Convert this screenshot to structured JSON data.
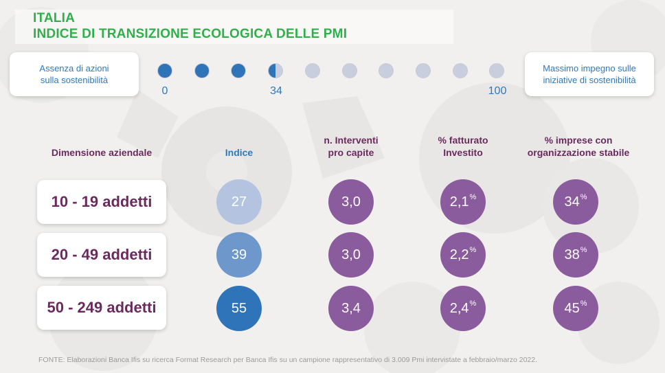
{
  "title": {
    "line1": "ITALIA",
    "line2": "INDICE DI TRANSIZIONE ECOLOGICA DELLE PMI"
  },
  "scale": {
    "left_label": "Assenza di azioni\nsulla sostenibilità",
    "right_label": "Massimo impegno sulle\niniziative di sostenibilità",
    "value": 34,
    "min": 0,
    "max": 100,
    "dot_count": 10,
    "ticks": [
      "0",
      "34",
      "100"
    ],
    "colors": {
      "filled": "#2f74b8",
      "empty": "#c8cedd"
    }
  },
  "chart_data": {
    "type": "table",
    "columns": [
      "Dimensione aziendale",
      "Indice",
      "n. Interventi\npro capite",
      "% fatturato\nInvestito",
      "% imprese con\norganizzazione stabile"
    ],
    "rows": [
      {
        "label": "10 - 19 addetti",
        "indice": 27,
        "interventi": "3,0",
        "fatturato": "2,1",
        "imprese": "34"
      },
      {
        "label": "20 - 49 addetti",
        "indice": 39,
        "interventi": "3,0",
        "fatturato": "2,2",
        "imprese": "38"
      },
      {
        "label": "50 - 249 addetti",
        "indice": 55,
        "interventi": "3,4",
        "fatturato": "2,4",
        "imprese": "45"
      }
    ],
    "percent_symbol": "%",
    "colors": {
      "indice": [
        "#b4c4e0",
        "#6e98cc",
        "#2f74b8"
      ],
      "other": "#8a5c9e",
      "header_indice": "#2d79c0",
      "header_other": "#6b2a5e",
      "row_label": "#6b2a5e"
    }
  },
  "footer": "FONTE: Elaborazioni Banca Ifis su ricerca Format Research per Banca Ifis su un campione rappresentativo di 3.009 Pmi intervistate a febbraio/marzo 2022."
}
